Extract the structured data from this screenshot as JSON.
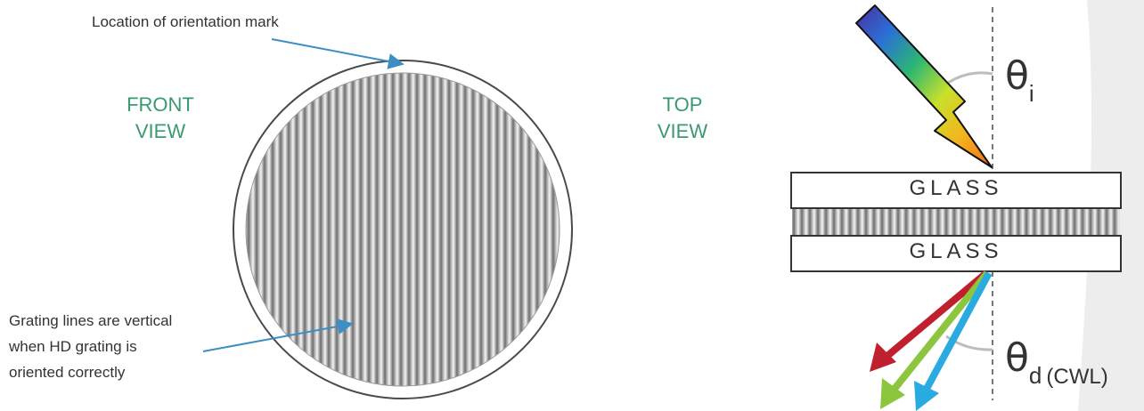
{
  "colors": {
    "view_label": "#3a9a6e",
    "annotation_arrow": "#3b8fc4",
    "text": "#333333",
    "ray_red": "#c0202e",
    "ray_green": "#8cc63f",
    "ray_blue": "#29abe2"
  },
  "annotations": {
    "orientation_mark": "Location of orientation mark",
    "grating_lines": [
      "Grating lines are vertical",
      "when HD grating is",
      "oriented correctly"
    ]
  },
  "front_view": {
    "lines": [
      "FRONT",
      "VIEW"
    ]
  },
  "top_view": {
    "lines": [
      "TOP",
      "VIEW"
    ],
    "glass_top": "GLASS",
    "glass_bottom": "GLASS",
    "theta_symbol": "θ",
    "incidence_subscript": "i",
    "diffraction_subscript": "d",
    "diffraction_suffix": "(CWL)"
  },
  "icons": [
    "incident-light-arrow-icon",
    "diffracted-ray-arrow-icon"
  ]
}
